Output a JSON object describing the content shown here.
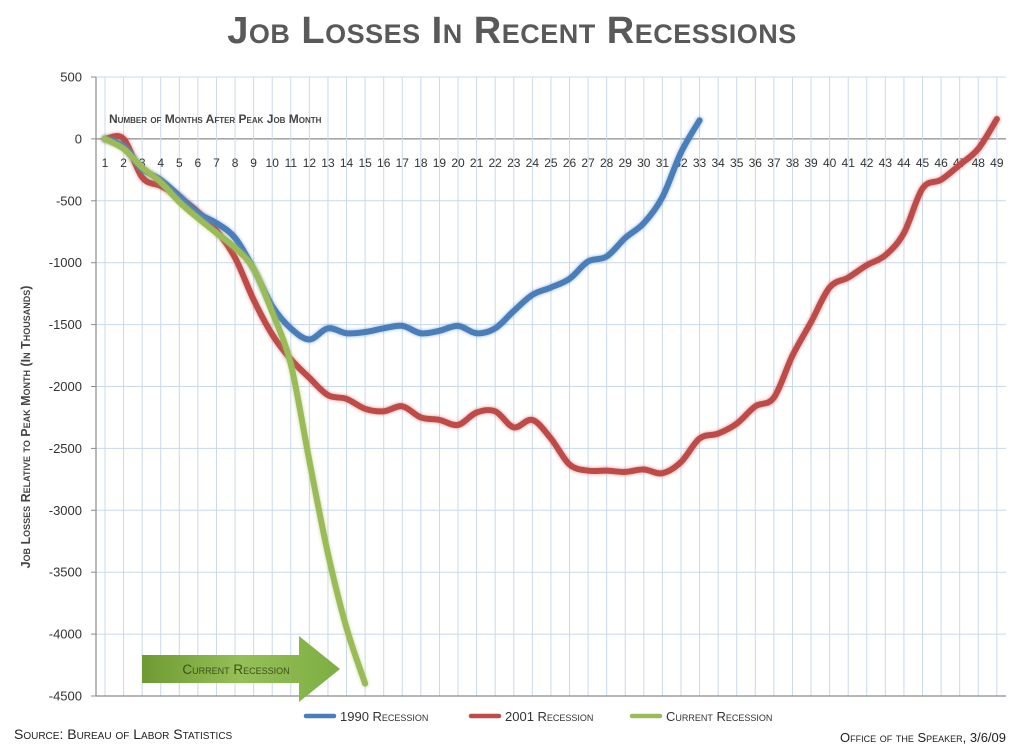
{
  "title": "Job Losses In Recent Recessions",
  "source": "Source: Bureau of Labor Statistics",
  "office": "Office of the Speaker, 3/6/09",
  "arrow_label": "Current Recession",
  "chart_data": {
    "type": "line",
    "title": "Job Losses In Recent Recessions",
    "xlabel": "Number of Months After Peak Job Month",
    "ylabel": "Job Losses Relative to Peak Month (In Thousands)",
    "xlim": [
      1,
      49
    ],
    "ylim": [
      -4500,
      500
    ],
    "yticks": [
      500,
      0,
      -500,
      -1000,
      -1500,
      -2000,
      -2500,
      -3000,
      -3500,
      -4000,
      -4500
    ],
    "ytick_labels": [
      "500",
      "0",
      "-500",
      "-1000",
      "-1500",
      "-2000",
      "-2500",
      "-3000",
      "-3500",
      "-4000",
      "-4500"
    ],
    "xticks": [
      1,
      2,
      3,
      4,
      5,
      6,
      7,
      8,
      9,
      10,
      11,
      12,
      13,
      14,
      15,
      16,
      17,
      18,
      19,
      20,
      21,
      22,
      23,
      24,
      25,
      26,
      27,
      28,
      29,
      30,
      31,
      32,
      33,
      34,
      35,
      36,
      37,
      38,
      39,
      40,
      41,
      42,
      43,
      44,
      45,
      46,
      47,
      48,
      49
    ],
    "xtick_labels": [
      "1",
      "2",
      "3",
      "4",
      "5",
      "6",
      "7",
      "8",
      "9",
      "10",
      "11",
      "12",
      "13",
      "14",
      "15",
      "16",
      "17",
      "18",
      "19",
      "20",
      "21",
      "22",
      "23",
      "24",
      "25",
      "26",
      "27",
      "28",
      "29",
      "30",
      "31",
      "32",
      "33",
      "34",
      "35",
      "36",
      "37",
      "38",
      "39",
      "40",
      "41",
      "42",
      "43",
      "44",
      "45",
      "46",
      "47",
      "48",
      "49"
    ],
    "grid": true,
    "legend_position": "bottom",
    "series": [
      {
        "name": "1990 Recession",
        "color": "#4a7ebb",
        "x": [
          1,
          2,
          3,
          4,
          5,
          6,
          7,
          8,
          9,
          10,
          11,
          12,
          13,
          14,
          15,
          16,
          17,
          18,
          19,
          20,
          21,
          22,
          23,
          24,
          25,
          26,
          27,
          28,
          29,
          30,
          31,
          32,
          33
        ],
        "values": [
          0,
          -60,
          -240,
          -330,
          -460,
          -600,
          -680,
          -800,
          -1050,
          -1350,
          -1530,
          -1620,
          -1530,
          -1570,
          -1560,
          -1530,
          -1510,
          -1570,
          -1550,
          -1510,
          -1570,
          -1530,
          -1390,
          -1260,
          -1200,
          -1130,
          -990,
          -950,
          -800,
          -680,
          -470,
          -110,
          150
        ]
      },
      {
        "name": "2001 Recession",
        "color": "#be4b48",
        "x": [
          1,
          2,
          3,
          4,
          5,
          6,
          7,
          8,
          9,
          10,
          11,
          12,
          13,
          14,
          15,
          16,
          17,
          18,
          19,
          20,
          21,
          22,
          23,
          24,
          25,
          26,
          27,
          28,
          29,
          30,
          31,
          32,
          33,
          34,
          35,
          36,
          37,
          38,
          39,
          40,
          41,
          42,
          43,
          44,
          45,
          46,
          47,
          48,
          49
        ],
        "values": [
          0,
          0,
          -310,
          -380,
          -470,
          -590,
          -740,
          -960,
          -1300,
          -1580,
          -1780,
          -1930,
          -2070,
          -2100,
          -2180,
          -2200,
          -2160,
          -2250,
          -2270,
          -2310,
          -2210,
          -2200,
          -2330,
          -2270,
          -2420,
          -2630,
          -2680,
          -2680,
          -2690,
          -2670,
          -2700,
          -2610,
          -2420,
          -2380,
          -2300,
          -2160,
          -2090,
          -1750,
          -1480,
          -1200,
          -1120,
          -1020,
          -940,
          -760,
          -400,
          -330,
          -210,
          -80,
          160
        ]
      },
      {
        "name": "Current Recession",
        "color": "#9bbb59",
        "x": [
          1,
          2,
          3,
          4,
          5,
          6,
          7,
          8,
          9,
          10,
          11,
          12,
          13,
          14,
          15
        ],
        "values": [
          0,
          -80,
          -230,
          -350,
          -510,
          -640,
          -760,
          -880,
          -1050,
          -1400,
          -1820,
          -2600,
          -3350,
          -3950,
          -4400
        ]
      }
    ]
  }
}
